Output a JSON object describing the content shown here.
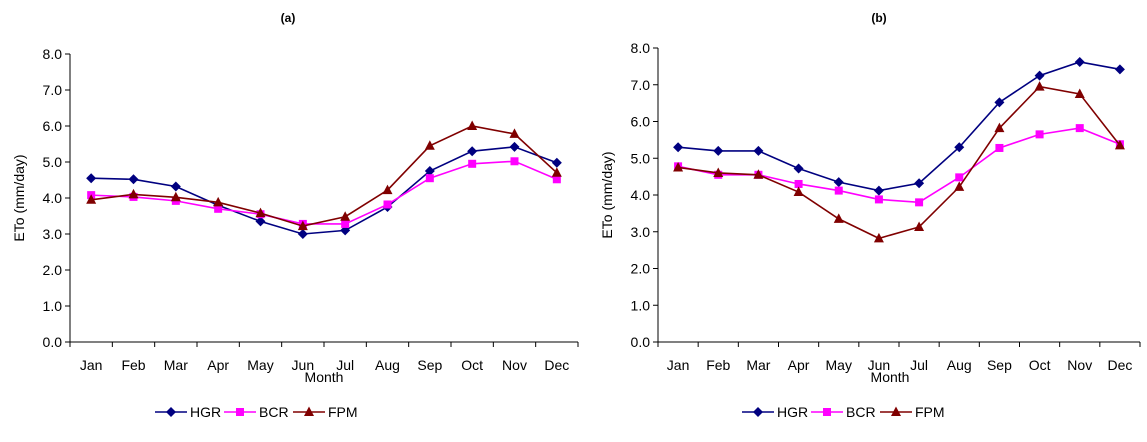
{
  "chart_data": [
    {
      "type": "line",
      "title": "(a)",
      "xlabel": "Month",
      "ylabel": "ETo (mm/day)",
      "ylim": [
        0,
        8
      ],
      "yticks": [
        "0.0",
        "1.0",
        "2.0",
        "3.0",
        "4.0",
        "5.0",
        "6.0",
        "7.0",
        "8.0"
      ],
      "grid": false,
      "legend": "bottom",
      "categories": [
        "Jan",
        "Feb",
        "Mar",
        "Apr",
        "May",
        "Jun",
        "Jul",
        "Aug",
        "Sep",
        "Oct",
        "Nov",
        "Dec"
      ],
      "series": [
        {
          "name": "HGR",
          "color": "#000080",
          "marker": "diamond",
          "values": [
            4.55,
            4.52,
            4.32,
            3.8,
            3.35,
            3.0,
            3.1,
            3.75,
            4.75,
            5.3,
            5.42,
            4.98
          ]
        },
        {
          "name": "BCR",
          "color": "#ff00ff",
          "marker": "square",
          "values": [
            4.08,
            4.03,
            3.92,
            3.7,
            3.55,
            3.28,
            3.28,
            3.82,
            4.55,
            4.95,
            5.02,
            4.52
          ]
        },
        {
          "name": "FPM",
          "color": "#800000",
          "marker": "triangle",
          "values": [
            3.95,
            4.1,
            4.02,
            3.88,
            3.58,
            3.22,
            3.48,
            4.22,
            5.45,
            6.0,
            5.78,
            4.7
          ]
        }
      ]
    },
    {
      "type": "line",
      "title": "(b)",
      "xlabel": "Month",
      "ylabel": "ETo (mm/day)",
      "ylim": [
        0,
        8
      ],
      "yticks": [
        "0.0",
        "1.0",
        "2.0",
        "3.0",
        "4.0",
        "5.0",
        "6.0",
        "7.0",
        "8.0"
      ],
      "grid": false,
      "legend": "bottom",
      "categories": [
        "Jan",
        "Feb",
        "Mar",
        "Apr",
        "May",
        "Jun",
        "Jul",
        "Aug",
        "Sep",
        "Oct",
        "Nov",
        "Dec"
      ],
      "series": [
        {
          "name": "HGR",
          "color": "#000080",
          "marker": "diamond",
          "values": [
            5.3,
            5.2,
            5.2,
            4.72,
            4.35,
            4.12,
            4.32,
            5.3,
            6.52,
            7.25,
            7.62,
            7.42
          ]
        },
        {
          "name": "BCR",
          "color": "#ff00ff",
          "marker": "square",
          "values": [
            4.78,
            4.55,
            4.55,
            4.3,
            4.12,
            3.88,
            3.8,
            4.48,
            5.28,
            5.65,
            5.82,
            5.38
          ]
        },
        {
          "name": "FPM",
          "color": "#800000",
          "marker": "triangle",
          "values": [
            4.75,
            4.6,
            4.55,
            4.08,
            3.35,
            2.82,
            3.13,
            4.22,
            5.82,
            6.95,
            6.75,
            5.35
          ]
        }
      ]
    }
  ]
}
